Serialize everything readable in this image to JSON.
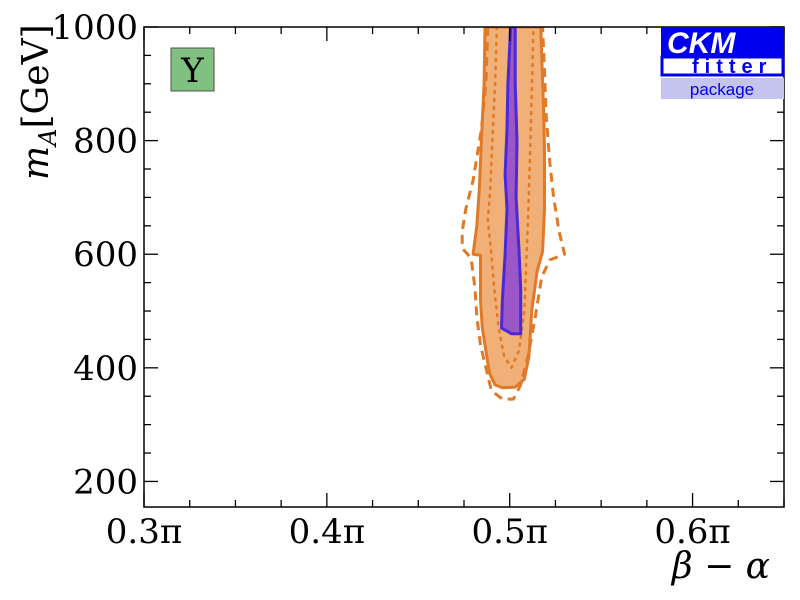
{
  "chart_data": {
    "type": "contour",
    "xlabel": "β − α",
    "ylabel_main": "m",
    "ylabel_sub": "A",
    "ylabel_unit": "[GeV]",
    "x_unit": "π",
    "xlim": [
      0.3,
      0.65
    ],
    "ylim": [
      155,
      1000
    ],
    "x_ticks": [
      {
        "value": 0.3,
        "label": "0.3π"
      },
      {
        "value": 0.4,
        "label": "0.4π"
      },
      {
        "value": 0.5,
        "label": "0.5π"
      },
      {
        "value": 0.6,
        "label": "0.6π"
      }
    ],
    "y_ticks": [
      {
        "value": 200,
        "label": "200"
      },
      {
        "value": 400,
        "label": "400"
      },
      {
        "value": 600,
        "label": "600"
      },
      {
        "value": 800,
        "label": "800"
      },
      {
        "value": 1000,
        "label": "1000"
      }
    ],
    "panel_tag": "Y",
    "regions": [
      {
        "style": "filled",
        "fill": "#f0b078",
        "stroke": "#e07a28",
        "points": [
          [
            0.4865,
            1000
          ],
          [
            0.486,
            900
          ],
          [
            0.4845,
            800
          ],
          [
            0.4835,
            720
          ],
          [
            0.482,
            650
          ],
          [
            0.48,
            600
          ],
          [
            0.484,
            598
          ],
          [
            0.484,
            520
          ],
          [
            0.485,
            470
          ],
          [
            0.487,
            430
          ],
          [
            0.489,
            390
          ],
          [
            0.492,
            370
          ],
          [
            0.496,
            365
          ],
          [
            0.503,
            366
          ],
          [
            0.508,
            380
          ],
          [
            0.5105,
            420
          ],
          [
            0.512,
            500
          ],
          [
            0.515,
            570
          ],
          [
            0.518,
            605
          ],
          [
            0.519,
            680
          ],
          [
            0.519,
            780
          ],
          [
            0.5185,
            860
          ],
          [
            0.5175,
            950
          ],
          [
            0.517,
            1000
          ]
        ]
      },
      {
        "style": "dashed",
        "fill": "none",
        "stroke": "#e07a28",
        "points": [
          [
            0.488,
            1000
          ],
          [
            0.487,
            900
          ],
          [
            0.4845,
            820
          ],
          [
            0.48,
            730
          ],
          [
            0.476,
            680
          ],
          [
            0.474,
            640
          ],
          [
            0.474,
            610
          ],
          [
            0.477,
            600
          ],
          [
            0.479,
            590
          ],
          [
            0.481,
            540
          ],
          [
            0.482,
            490
          ],
          [
            0.484,
            440
          ],
          [
            0.487,
            400
          ],
          [
            0.49,
            360
          ],
          [
            0.496,
            345
          ],
          [
            0.502,
            345
          ],
          [
            0.506,
            370
          ],
          [
            0.51,
            420
          ],
          [
            0.514,
            490
          ],
          [
            0.5175,
            560
          ],
          [
            0.522,
            590
          ],
          [
            0.53,
            600
          ],
          [
            0.527,
            640
          ],
          [
            0.524,
            700
          ],
          [
            0.522,
            760
          ],
          [
            0.52,
            840
          ],
          [
            0.519,
            920
          ],
          [
            0.518,
            1000
          ]
        ]
      },
      {
        "style": "dotted",
        "fill": "none",
        "stroke": "#e07a28",
        "points": [
          [
            0.493,
            1000
          ],
          [
            0.492,
            900
          ],
          [
            0.4905,
            800
          ],
          [
            0.4895,
            720
          ],
          [
            0.488,
            660
          ],
          [
            0.49,
            600
          ],
          [
            0.4915,
            540
          ],
          [
            0.494,
            470
          ],
          [
            0.497,
            420
          ],
          [
            0.501,
            400
          ],
          [
            0.505,
            430
          ],
          [
            0.508,
            500
          ],
          [
            0.509,
            580
          ],
          [
            0.51,
            660
          ],
          [
            0.511,
            760
          ],
          [
            0.512,
            880
          ],
          [
            0.513,
            1000
          ]
        ]
      },
      {
        "style": "filled",
        "fill": "#9b56c8",
        "stroke": "#4a2ad8",
        "points": [
          [
            0.5005,
            1000
          ],
          [
            0.499,
            900
          ],
          [
            0.4985,
            820
          ],
          [
            0.4975,
            740
          ],
          [
            0.4985,
            680
          ],
          [
            0.4975,
            600
          ],
          [
            0.496,
            520
          ],
          [
            0.4955,
            470
          ],
          [
            0.501,
            460
          ],
          [
            0.506,
            460
          ],
          [
            0.506,
            540
          ],
          [
            0.505,
            610
          ],
          [
            0.5035,
            700
          ],
          [
            0.504,
            800
          ],
          [
            0.503,
            900
          ],
          [
            0.503,
            1000
          ]
        ]
      }
    ]
  },
  "logo": {
    "line1": "CKM",
    "line2": "fitter",
    "line3": "package",
    "blue": "#0000ee",
    "light": "#c4c4ee"
  },
  "tag_color": "#80c080"
}
